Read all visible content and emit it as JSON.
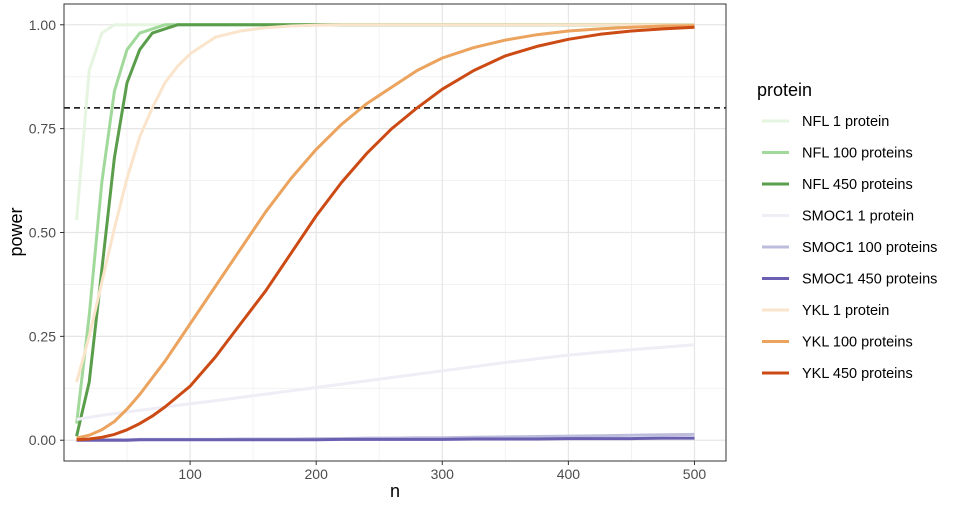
{
  "chart_data": {
    "type": "line",
    "title": "",
    "xlabel": "n",
    "ylabel": "power",
    "xlim": [
      0,
      525
    ],
    "ylim": [
      -0.05,
      1.05
    ],
    "x_ticks": [
      100,
      200,
      300,
      400,
      500
    ],
    "x_tick_labels": [
      "100",
      "200",
      "300",
      "400",
      "500"
    ],
    "y_ticks": [
      0,
      0.25,
      0.5,
      0.75,
      1
    ],
    "y_tick_labels": [
      "0.00",
      "0.25",
      "0.50",
      "0.75",
      "1.00"
    ],
    "grid": true,
    "legend_title": "protein",
    "legend_position": "right",
    "reference_line": {
      "y": 0.8,
      "style": "dashed",
      "color": "#000000"
    },
    "x": [
      10,
      20,
      30,
      40,
      50,
      60,
      70,
      80,
      90,
      100,
      120,
      140,
      160,
      180,
      200,
      220,
      240,
      260,
      280,
      300,
      325,
      350,
      375,
      400,
      425,
      450,
      475,
      500
    ],
    "series": [
      {
        "name": "NFL 1 protein",
        "color": "#e5f5e0",
        "values": [
          0.53,
          0.89,
          0.98,
          1.0,
          1.0,
          1.0,
          1.0,
          1.0,
          1.0,
          1.0,
          1.0,
          1.0,
          1.0,
          1.0,
          1.0,
          1.0,
          1.0,
          1.0,
          1.0,
          1.0,
          1.0,
          1.0,
          1.0,
          1.0,
          1.0,
          1.0,
          1.0,
          1.0
        ]
      },
      {
        "name": "NFL 100 proteins",
        "color": "#a1d99b",
        "values": [
          0.04,
          0.3,
          0.62,
          0.84,
          0.94,
          0.98,
          0.99,
          1.0,
          1.0,
          1.0,
          1.0,
          1.0,
          1.0,
          1.0,
          1.0,
          1.0,
          1.0,
          1.0,
          1.0,
          1.0,
          1.0,
          1.0,
          1.0,
          1.0,
          1.0,
          1.0,
          1.0,
          1.0
        ]
      },
      {
        "name": "NFL 450 proteins",
        "color": "#5a9e4b",
        "values": [
          0.01,
          0.14,
          0.41,
          0.68,
          0.86,
          0.94,
          0.98,
          0.99,
          1.0,
          1.0,
          1.0,
          1.0,
          1.0,
          1.0,
          1.0,
          1.0,
          1.0,
          1.0,
          1.0,
          1.0,
          1.0,
          1.0,
          1.0,
          1.0,
          1.0,
          1.0,
          1.0,
          1.0
        ]
      },
      {
        "name": "SMOC1 1 protein",
        "color": "#efedf5",
        "values": [
          0.05,
          0.055,
          0.06,
          0.064,
          0.068,
          0.072,
          0.076,
          0.08,
          0.084,
          0.088,
          0.095,
          0.103,
          0.111,
          0.119,
          0.127,
          0.135,
          0.143,
          0.151,
          0.159,
          0.167,
          0.177,
          0.187,
          0.196,
          0.205,
          0.212,
          0.218,
          0.224,
          0.23
        ]
      },
      {
        "name": "SMOC1 100 proteins",
        "color": "#bcbddc",
        "values": [
          0.001,
          0.001,
          0.001,
          0.001,
          0.001,
          0.002,
          0.002,
          0.002,
          0.002,
          0.002,
          0.002,
          0.003,
          0.003,
          0.003,
          0.004,
          0.004,
          0.005,
          0.005,
          0.006,
          0.006,
          0.007,
          0.008,
          0.009,
          0.01,
          0.011,
          0.012,
          0.013,
          0.014
        ]
      },
      {
        "name": "SMOC1 450 proteins",
        "color": "#6a5fb0",
        "values": [
          0.0,
          0.0,
          0.0,
          0.0,
          0.0,
          0.001,
          0.001,
          0.001,
          0.001,
          0.001,
          0.001,
          0.001,
          0.001,
          0.001,
          0.001,
          0.002,
          0.002,
          0.002,
          0.002,
          0.002,
          0.003,
          0.003,
          0.003,
          0.004,
          0.004,
          0.004,
          0.005,
          0.005
        ]
      },
      {
        "name": "YKL 1 protein",
        "color": "#fae5cc",
        "values": [
          0.14,
          0.25,
          0.38,
          0.51,
          0.63,
          0.73,
          0.8,
          0.86,
          0.9,
          0.93,
          0.97,
          0.985,
          0.993,
          0.997,
          0.999,
          1.0,
          1.0,
          1.0,
          1.0,
          1.0,
          1.0,
          1.0,
          1.0,
          1.0,
          1.0,
          1.0,
          1.0,
          1.0
        ]
      },
      {
        "name": "YKL 100 proteins",
        "color": "#eba35e",
        "values": [
          0.005,
          0.012,
          0.025,
          0.045,
          0.075,
          0.11,
          0.15,
          0.19,
          0.235,
          0.28,
          0.37,
          0.46,
          0.55,
          0.63,
          0.7,
          0.76,
          0.81,
          0.85,
          0.89,
          0.92,
          0.945,
          0.963,
          0.976,
          0.985,
          0.99,
          0.994,
          0.997,
          0.998
        ]
      },
      {
        "name": "YKL 450 proteins",
        "color": "#cc4a14",
        "values": [
          0.001,
          0.003,
          0.007,
          0.014,
          0.025,
          0.04,
          0.058,
          0.08,
          0.105,
          0.13,
          0.2,
          0.28,
          0.36,
          0.45,
          0.54,
          0.62,
          0.69,
          0.75,
          0.8,
          0.845,
          0.89,
          0.925,
          0.948,
          0.965,
          0.977,
          0.985,
          0.99,
          0.994
        ]
      }
    ]
  }
}
